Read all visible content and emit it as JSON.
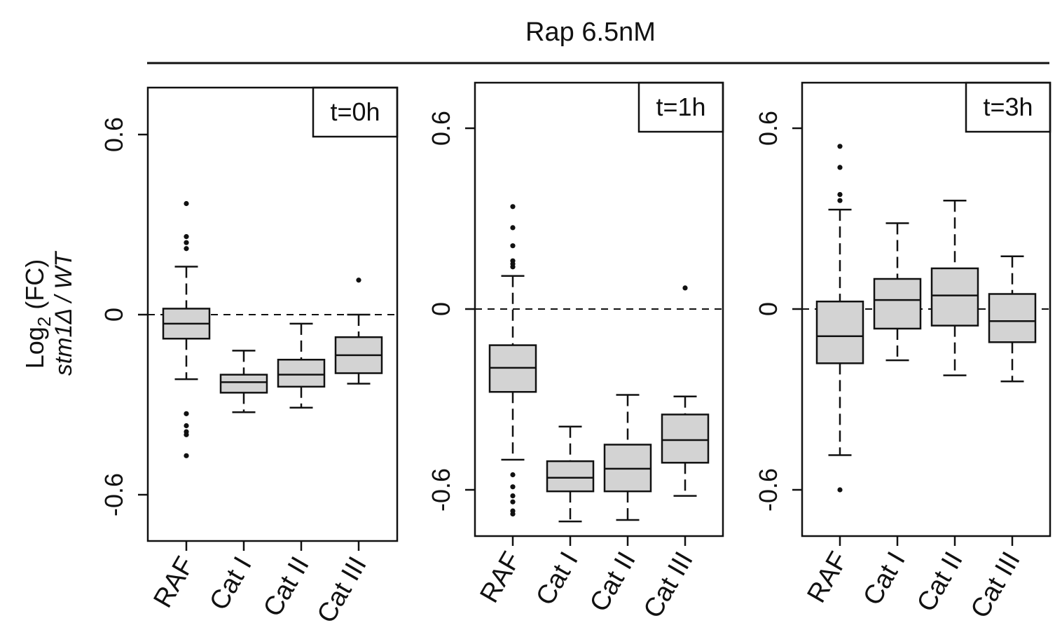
{
  "figure": {
    "supertitle": "Rap 6.5nM",
    "ylabel_main": "Log",
    "ylabel_sub": "2",
    "ylabel_rest": " (FC)",
    "ylabel_line2": "stm1Δ / WT"
  },
  "chart_data": [
    {
      "type": "box",
      "panel_label": "t=0h",
      "categories": [
        "RAF",
        "Cat I",
        "Cat II",
        "Cat III"
      ],
      "yticks": [
        -0.6,
        0,
        0.6
      ],
      "ytick_labels": [
        "-0.6",
        "0",
        "0.6"
      ],
      "ylim": [
        -0.75,
        0.75
      ],
      "reference_line": 0,
      "boxes": [
        {
          "category": "RAF",
          "whisker_low": -0.215,
          "q1": -0.08,
          "median": -0.03,
          "q3": 0.02,
          "whisker_high": 0.16,
          "outliers": [
            0.37,
            0.26,
            0.24,
            0.22,
            -0.33,
            -0.37,
            -0.39,
            -0.4,
            -0.47
          ]
        },
        {
          "category": "Cat I",
          "whisker_low": -0.325,
          "q1": -0.26,
          "median": -0.225,
          "q3": -0.2,
          "whisker_high": -0.12,
          "outliers": []
        },
        {
          "category": "Cat II",
          "whisker_low": -0.31,
          "q1": -0.24,
          "median": -0.2,
          "q3": -0.15,
          "whisker_high": -0.03,
          "outliers": []
        },
        {
          "category": "Cat III",
          "whisker_low": -0.23,
          "q1": -0.195,
          "median": -0.135,
          "q3": -0.075,
          "whisker_high": 0.0,
          "outliers": [
            0.115
          ]
        }
      ]
    },
    {
      "type": "box",
      "panel_label": "t=1h",
      "categories": [
        "RAF",
        "Cat I",
        "Cat II",
        "Cat III"
      ],
      "yticks": [
        -0.6,
        0,
        0.6
      ],
      "ytick_labels": [
        "-0.6",
        "0",
        "0.6"
      ],
      "ylim": [
        -0.75,
        0.75
      ],
      "reference_line": 0,
      "boxes": [
        {
          "category": "RAF",
          "whisker_low": -0.5,
          "q1": -0.275,
          "median": -0.195,
          "q3": -0.12,
          "whisker_high": 0.11,
          "outliers": [
            0.34,
            0.27,
            0.21,
            0.16,
            0.15,
            0.14,
            -0.55,
            -0.59,
            -0.62,
            -0.64,
            -0.67,
            -0.68
          ]
        },
        {
          "category": "Cat I",
          "whisker_low": -0.705,
          "q1": -0.605,
          "median": -0.56,
          "q3": -0.505,
          "whisker_high": -0.39,
          "outliers": []
        },
        {
          "category": "Cat II",
          "whisker_low": -0.7,
          "q1": -0.605,
          "median": -0.53,
          "q3": -0.45,
          "whisker_high": -0.285,
          "outliers": []
        },
        {
          "category": "Cat III",
          "whisker_low": -0.62,
          "q1": -0.51,
          "median": -0.435,
          "q3": -0.35,
          "whisker_high": -0.29,
          "outliers": [
            0.07
          ]
        }
      ]
    },
    {
      "type": "box",
      "panel_label": "t=3h",
      "categories": [
        "RAF",
        "Cat I",
        "Cat II",
        "Cat III"
      ],
      "yticks": [
        -0.6,
        0,
        0.6
      ],
      "ytick_labels": [
        "-0.6",
        "0",
        "0.6"
      ],
      "ylim": [
        -0.75,
        0.75
      ],
      "reference_line": 0,
      "boxes": [
        {
          "category": "RAF",
          "whisker_low": -0.485,
          "q1": -0.18,
          "median": -0.09,
          "q3": 0.025,
          "whisker_high": 0.33,
          "outliers": [
            0.54,
            0.47,
            0.38,
            0.36,
            -0.6
          ]
        },
        {
          "category": "Cat I",
          "whisker_low": -0.17,
          "q1": -0.065,
          "median": 0.03,
          "q3": 0.1,
          "whisker_high": 0.285,
          "outliers": []
        },
        {
          "category": "Cat II",
          "whisker_low": -0.22,
          "q1": -0.055,
          "median": 0.045,
          "q3": 0.135,
          "whisker_high": 0.36,
          "outliers": []
        },
        {
          "category": "Cat III",
          "whisker_low": -0.24,
          "q1": -0.11,
          "median": -0.04,
          "q3": 0.05,
          "whisker_high": 0.175,
          "outliers": []
        }
      ]
    }
  ]
}
